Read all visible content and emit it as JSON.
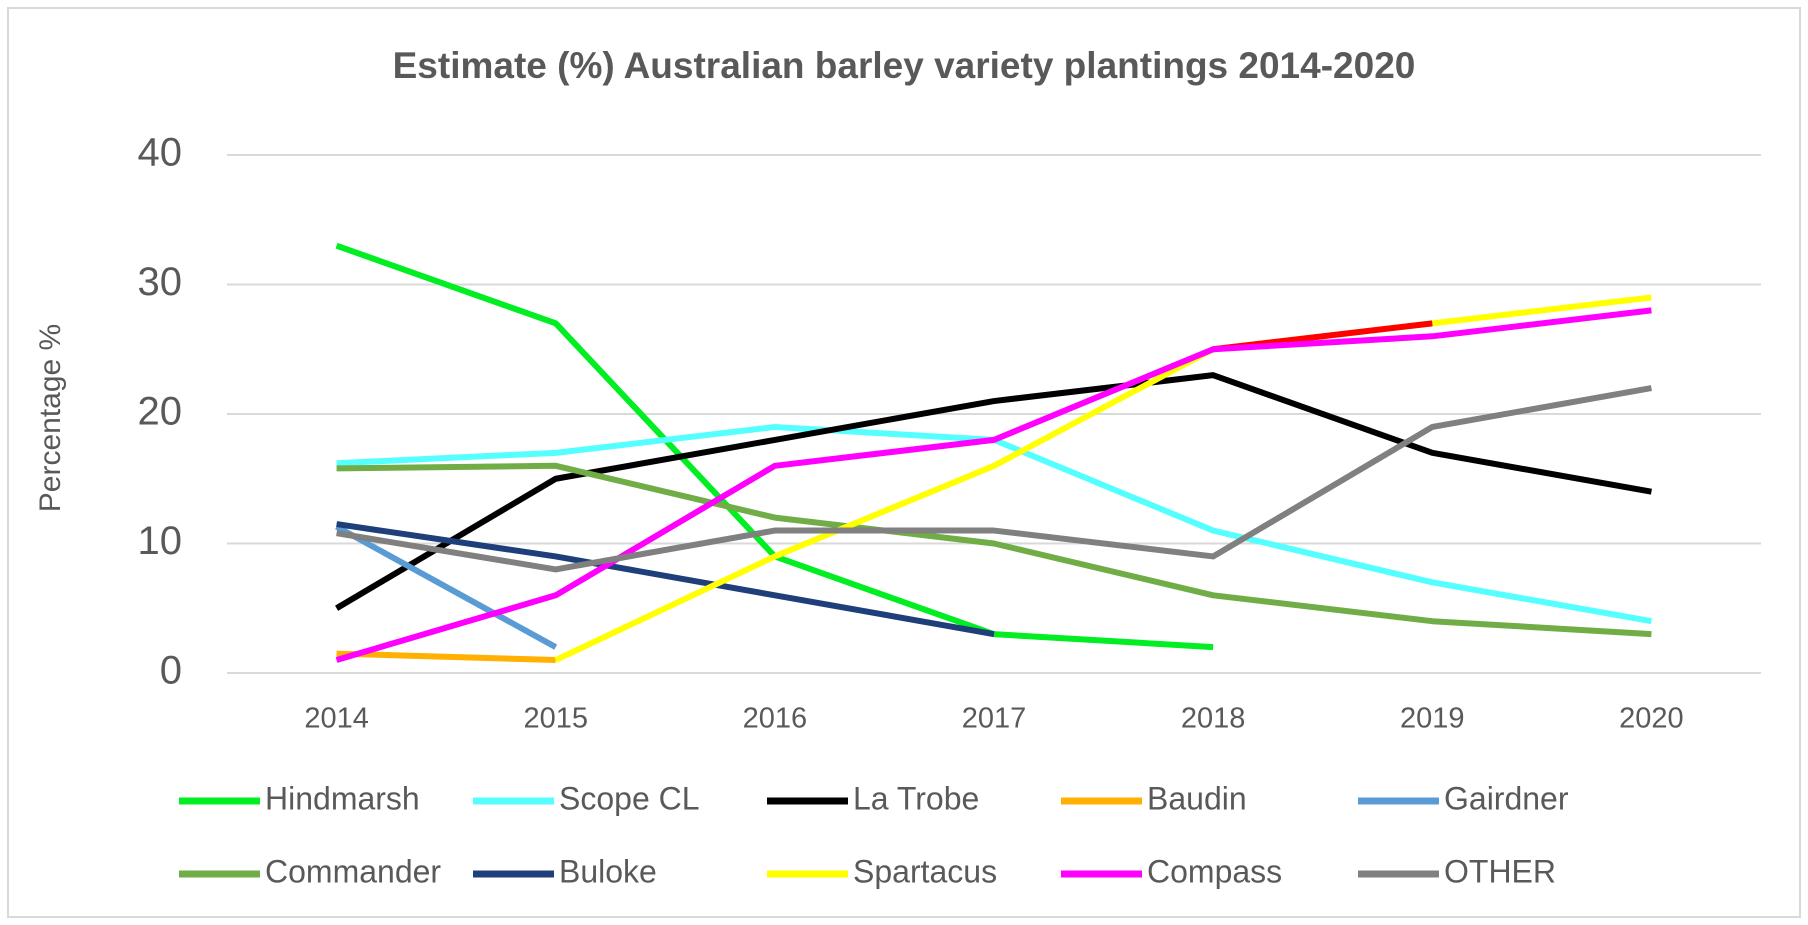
{
  "chart_data": {
    "type": "line",
    "title": "Estimate (%) Australian barley variety plantings 2014-2020",
    "y_label": "Percentage %",
    "categories": [
      "2014",
      "2015",
      "2016",
      "2017",
      "2018",
      "2019",
      "2020"
    ],
    "ylim": [
      0,
      40
    ],
    "yticks": [
      0,
      10,
      20,
      30,
      40
    ],
    "grid": true,
    "legend": "bottom",
    "series": [
      {
        "name": "Hindmarsh",
        "color": "#00ee22",
        "values": [
          33,
          27,
          9,
          3,
          2,
          null,
          null
        ]
      },
      {
        "name": "Scope CL",
        "color": "#55ffff",
        "values": [
          16.2,
          17,
          19,
          18,
          11,
          7,
          4
        ]
      },
      {
        "name": "La Trobe",
        "color": "#000000",
        "values": [
          5,
          15,
          18,
          21,
          23,
          17,
          14
        ]
      },
      {
        "name": "Baudin",
        "color": "#ffb000",
        "values": [
          1.5,
          1,
          null,
          null,
          null,
          null,
          null
        ]
      },
      {
        "name": "Gairdner",
        "color": "#5b9bd5",
        "values": [
          11.3,
          2,
          null,
          null,
          null,
          null,
          null
        ]
      },
      {
        "name": "Commander",
        "color": "#70ad47",
        "values": [
          15.8,
          16,
          12,
          10,
          6,
          4,
          3
        ]
      },
      {
        "name": "Buloke",
        "color": "#1f3f7a",
        "values": [
          11.5,
          9,
          6,
          3,
          null,
          null,
          null
        ]
      },
      {
        "name": "Spartacus",
        "color": "#ffff00",
        "values": [
          null,
          1,
          9,
          16,
          25,
          27,
          29
        ]
      },
      {
        "color": "#ff0000",
        "values": [
          null,
          null,
          null,
          null,
          25,
          27,
          null
        ]
      },
      {
        "name": "Compass",
        "color": "#ff00ff",
        "values": [
          1,
          6,
          16,
          18,
          25,
          26,
          28
        ]
      },
      {
        "name": "OTHER",
        "color": "#808080",
        "values": [
          10.8,
          8,
          11,
          11,
          9,
          19,
          22
        ]
      }
    ]
  }
}
